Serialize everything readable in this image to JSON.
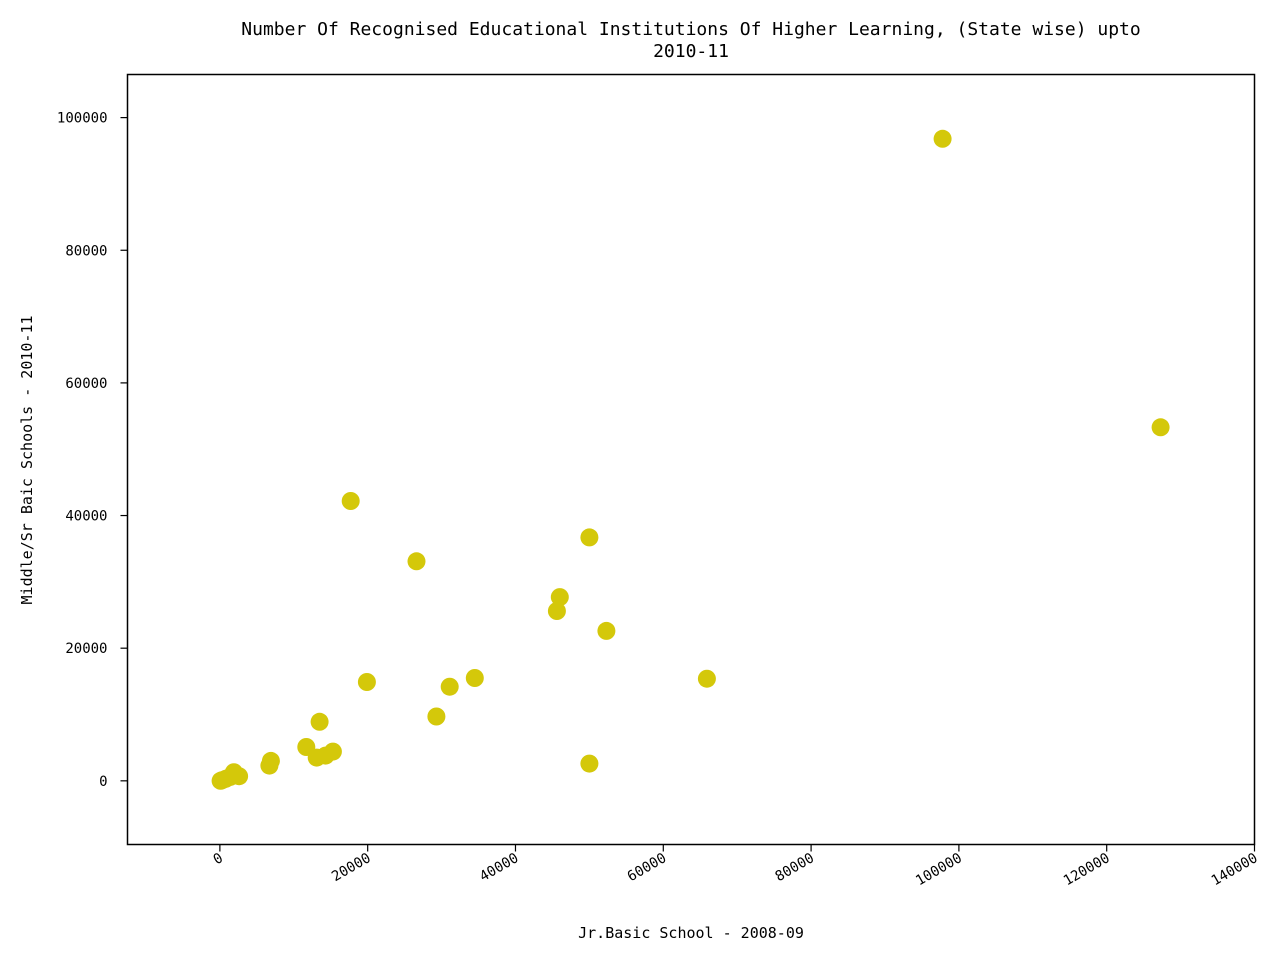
{
  "chart_data": {
    "type": "scatter",
    "title_lines": [
      "Number Of Recognised Educational Institutions Of Higher Learning, (State wise) upto",
      "2010-11"
    ],
    "xlabel": "Jr.Basic School - 2008-09",
    "ylabel": "Middle/Sr Baic Schools - 2010-11",
    "xlim": [
      -12500,
      140000
    ],
    "ylim": [
      -9600,
      106500
    ],
    "xticks": [
      0,
      20000,
      40000,
      60000,
      80000,
      100000,
      120000,
      140000
    ],
    "xtick_labels": [
      "0",
      "20000",
      "40000",
      "60000",
      "80000",
      "100000",
      "120000",
      "140000"
    ],
    "yticks": [
      0,
      20000,
      40000,
      60000,
      80000,
      100000
    ],
    "ytick_labels": [
      "0",
      "20000",
      "40000",
      "60000",
      "80000",
      "100000"
    ],
    "grid": false,
    "marker_color": "#d4c80a",
    "points": [
      {
        "x": 97800,
        "y": 96800
      },
      {
        "x": 127300,
        "y": 53300
      },
      {
        "x": 17700,
        "y": 42200
      },
      {
        "x": 50000,
        "y": 36700
      },
      {
        "x": 26600,
        "y": 33100
      },
      {
        "x": 46000,
        "y": 27700
      },
      {
        "x": 45600,
        "y": 25600
      },
      {
        "x": 52300,
        "y": 22600
      },
      {
        "x": 65900,
        "y": 15400
      },
      {
        "x": 34500,
        "y": 15500
      },
      {
        "x": 19900,
        "y": 14900
      },
      {
        "x": 31100,
        "y": 14200
      },
      {
        "x": 29300,
        "y": 9700
      },
      {
        "x": 13500,
        "y": 8900
      },
      {
        "x": 11700,
        "y": 5100
      },
      {
        "x": 15300,
        "y": 4400
      },
      {
        "x": 14300,
        "y": 3800
      },
      {
        "x": 13100,
        "y": 3500
      },
      {
        "x": 6900,
        "y": 3000
      },
      {
        "x": 6700,
        "y": 2300
      },
      {
        "x": 50000,
        "y": 2600
      },
      {
        "x": 1900,
        "y": 1300
      },
      {
        "x": 2600,
        "y": 700
      },
      {
        "x": 1400,
        "y": 600
      },
      {
        "x": 800,
        "y": 300
      },
      {
        "x": 300,
        "y": 100
      },
      {
        "x": 100,
        "y": 0
      }
    ]
  }
}
